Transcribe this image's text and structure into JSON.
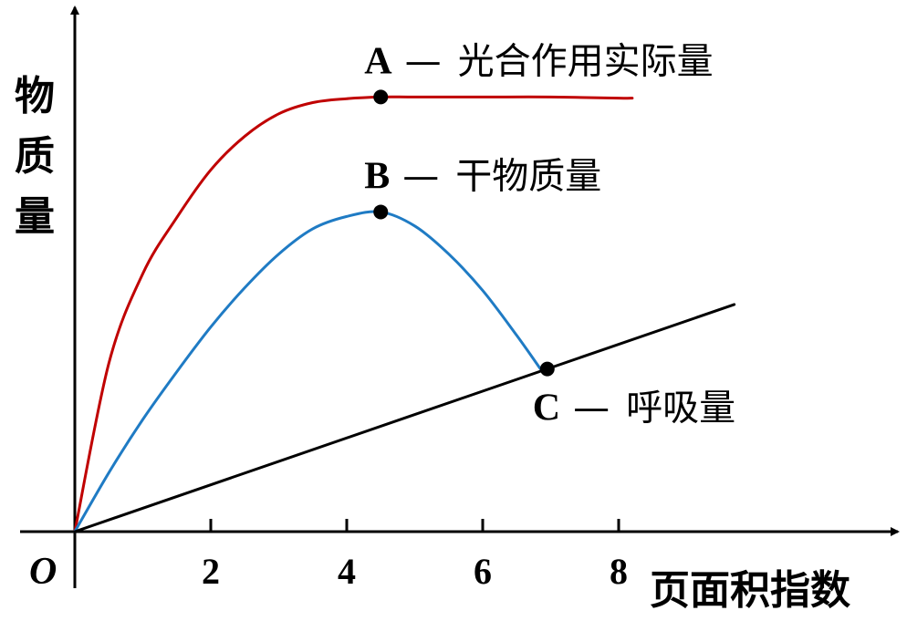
{
  "chart_data": {
    "type": "line",
    "xlabel": "页面积指数",
    "ylabel": "物质量",
    "origin_label": "O",
    "xlim": [
      0,
      10
    ],
    "x_ticks": [
      2,
      4,
      6,
      8
    ],
    "grid": false,
    "series": [
      {
        "color": "#c00000",
        "x": [
          0,
          0.5,
          1,
          1.5,
          2,
          2.5,
          3,
          3.5,
          4,
          4.5,
          5,
          6,
          7,
          8,
          8.2
        ],
        "y": [
          0,
          3.0,
          4.6,
          5.6,
          6.45,
          7.05,
          7.45,
          7.65,
          7.72,
          7.75,
          7.75,
          7.75,
          7.75,
          7.73,
          7.73
        ]
      },
      {
        "color": "#1f7bc4",
        "x": [
          0,
          0.5,
          1,
          1.5,
          2,
          2.5,
          3,
          3.5,
          4,
          4.5,
          5,
          5.5,
          6,
          6.5,
          6.85
        ],
        "y": [
          0,
          1.05,
          2.0,
          2.85,
          3.65,
          4.35,
          4.95,
          5.4,
          5.62,
          5.7,
          5.45,
          4.95,
          4.3,
          3.5,
          2.9
        ]
      },
      {
        "color": "#000000",
        "x": [
          0,
          9.7
        ],
        "y": [
          0,
          4.05
        ]
      }
    ],
    "points": [
      {
        "letter": "A",
        "dash": "—",
        "text": "光合作用实际量",
        "x": 4.5,
        "y": 7.75
      },
      {
        "letter": "B",
        "dash": "—",
        "text": "干物质量",
        "x": 4.5,
        "y": 5.7
      },
      {
        "letter": "C",
        "dash": "—",
        "text": "呼吸量",
        "x": 6.95,
        "y": 2.9
      }
    ]
  }
}
